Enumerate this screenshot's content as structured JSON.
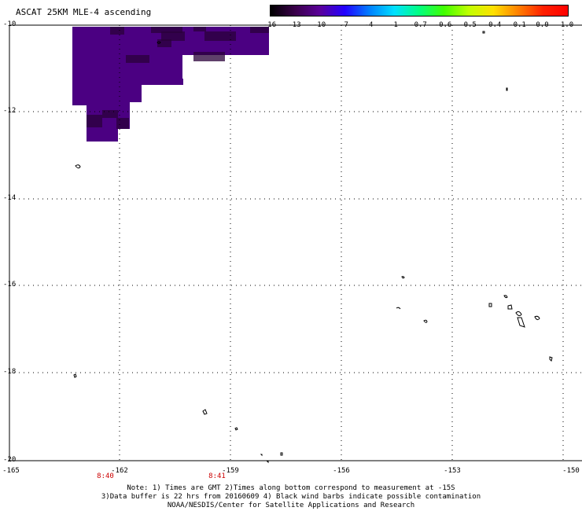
{
  "title": "ASCAT 25KM MLE-4 ascending",
  "colorbar": {
    "labels": [
      "-16",
      "-13",
      "-10",
      "-7",
      "-4",
      "-1",
      "-0.7",
      "-0.6",
      "-0.5",
      "-0.4",
      "-0.1",
      "0.0",
      "1.0"
    ],
    "stops": [
      "#000000",
      "#3a004a",
      "#5a009a",
      "#2200ff",
      "#0080ff",
      "#00e0ff",
      "#00ff80",
      "#40ff00",
      "#c0ff00",
      "#ffe000",
      "#ff8000",
      "#ff2000",
      "#ff0000"
    ]
  },
  "map": {
    "lat_labels": [
      "-10",
      "-12",
      "-14",
      "-16",
      "-18",
      "-20"
    ],
    "lon_labels": [
      "-165",
      "-162",
      "-159",
      "-156",
      "-153",
      "-150"
    ],
    "time_labels": [
      "8:40",
      "8:41"
    ],
    "data_color": "#4b0082",
    "grid_color": "#000000"
  },
  "notes": {
    "line1": "Note: 1) Times are GMT 2)Times along bottom correspond to measurement at -15S",
    "line2": "3)Data buffer is 22 hrs from 20160609 4) Black wind barbs indicate possible contamination",
    "line3": "NOAA/NESDIS/Center for Satellite Applications and Research"
  }
}
